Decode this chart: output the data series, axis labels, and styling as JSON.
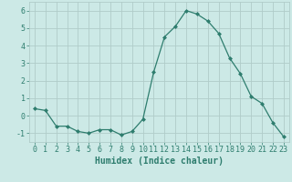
{
  "x": [
    0,
    1,
    2,
    3,
    4,
    5,
    6,
    7,
    8,
    9,
    10,
    11,
    12,
    13,
    14,
    15,
    16,
    17,
    18,
    19,
    20,
    21,
    22,
    23
  ],
  "y": [
    0.4,
    0.3,
    -0.6,
    -0.6,
    -0.9,
    -1.0,
    -0.8,
    -0.8,
    -1.1,
    -0.9,
    -0.2,
    2.5,
    4.5,
    5.1,
    6.0,
    5.8,
    5.4,
    4.7,
    3.3,
    2.4,
    1.1,
    0.7,
    -0.4,
    -1.2
  ],
  "line_color": "#2e7d6e",
  "marker": "D",
  "marker_size": 2.0,
  "bg_color": "#cce9e6",
  "grid_color": "#b0ccc9",
  "xlabel": "Humidex (Indice chaleur)",
  "xlim": [
    -0.5,
    23.5
  ],
  "ylim": [
    -1.5,
    6.5
  ],
  "yticks": [
    -1,
    0,
    1,
    2,
    3,
    4,
    5,
    6
  ],
  "xlabel_fontsize": 7,
  "tick_fontsize": 6
}
